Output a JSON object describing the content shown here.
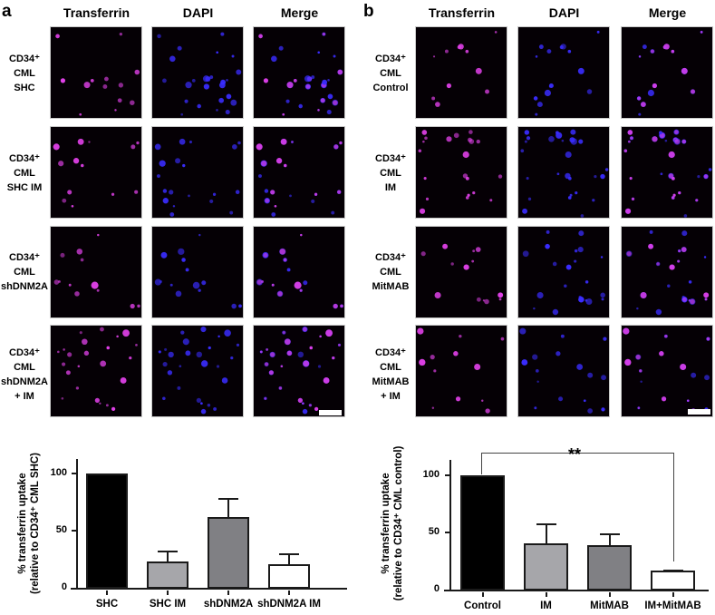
{
  "panel_a": {
    "letter": "a",
    "columns": [
      "Transferrin",
      "DAPI",
      "Merge"
    ],
    "rows": [
      {
        "line1": "CD34⁺",
        "line2": "CML",
        "line3": "SHC",
        "line4": ""
      },
      {
        "line1": "CD34⁺",
        "line2": "CML",
        "line3": "SHC IM",
        "line4": ""
      },
      {
        "line1": "CD34⁺",
        "line2": "CML",
        "line3": "shDNM2A",
        "line4": ""
      },
      {
        "line1": "CD34⁺",
        "line2": "CML",
        "line3": "shDNM2A",
        "line4": "+ IM"
      }
    ]
  },
  "panel_b": {
    "letter": "b",
    "columns": [
      "Transferrin",
      "DAPI",
      "Merge"
    ],
    "rows": [
      {
        "line1": "CD34⁺",
        "line2": "CML",
        "line3": "Control",
        "line4": ""
      },
      {
        "line1": "CD34⁺",
        "line2": "CML",
        "line3": "IM",
        "line4": ""
      },
      {
        "line1": "CD34⁺",
        "line2": "CML",
        "line3": "MitMAB",
        "line4": ""
      },
      {
        "line1": "CD34⁺",
        "line2": "CML",
        "line3": "MitMAB",
        "line4": "+ IM"
      }
    ]
  },
  "colors": {
    "transferrin": "#e040e8",
    "dapi": "#3a2cff",
    "bar_black": "#000000",
    "bar_light_gray": "#a6a6aa",
    "bar_dark_gray": "#808084",
    "bar_white": "#ffffff"
  },
  "chart_data": [
    {
      "type": "bar",
      "title": "",
      "categories": [
        "SHC",
        "SHC IM",
        "shDNM2A",
        "shDNM2A IM"
      ],
      "values": [
        100,
        24,
        62,
        21
      ],
      "error_upper": [
        0,
        9,
        17,
        10
      ],
      "bar_colors": [
        "#000000",
        "#a6a6aa",
        "#808084",
        "#ffffff"
      ],
      "xlabel": "",
      "ylabel_line1": "% transferrin uptake",
      "ylabel_line2": "(relative to CD34⁺ CML SHC)",
      "yticks": [
        "0",
        "50",
        "100"
      ],
      "ylim": [
        0,
        125
      ],
      "grid": false,
      "legend": "none"
    },
    {
      "type": "bar",
      "title": "",
      "categories": [
        "Control",
        "IM",
        "MitMAB",
        "IM+MitMAB"
      ],
      "values": [
        100,
        41,
        39,
        17
      ],
      "error_upper": [
        0,
        17,
        11,
        1
      ],
      "bar_colors": [
        "#000000",
        "#a6a6aa",
        "#808084",
        "#ffffff"
      ],
      "xlabel": "",
      "ylabel_line1": "% transferrin uptake",
      "ylabel_line2": "(relative to CD34⁺ CML control)",
      "yticks": [
        "0",
        "50",
        "100"
      ],
      "ylim": [
        0,
        125
      ],
      "grid": false,
      "legend": "none",
      "annotation": {
        "text": "**",
        "from": "Control",
        "to": "IM+MitMAB"
      }
    }
  ]
}
